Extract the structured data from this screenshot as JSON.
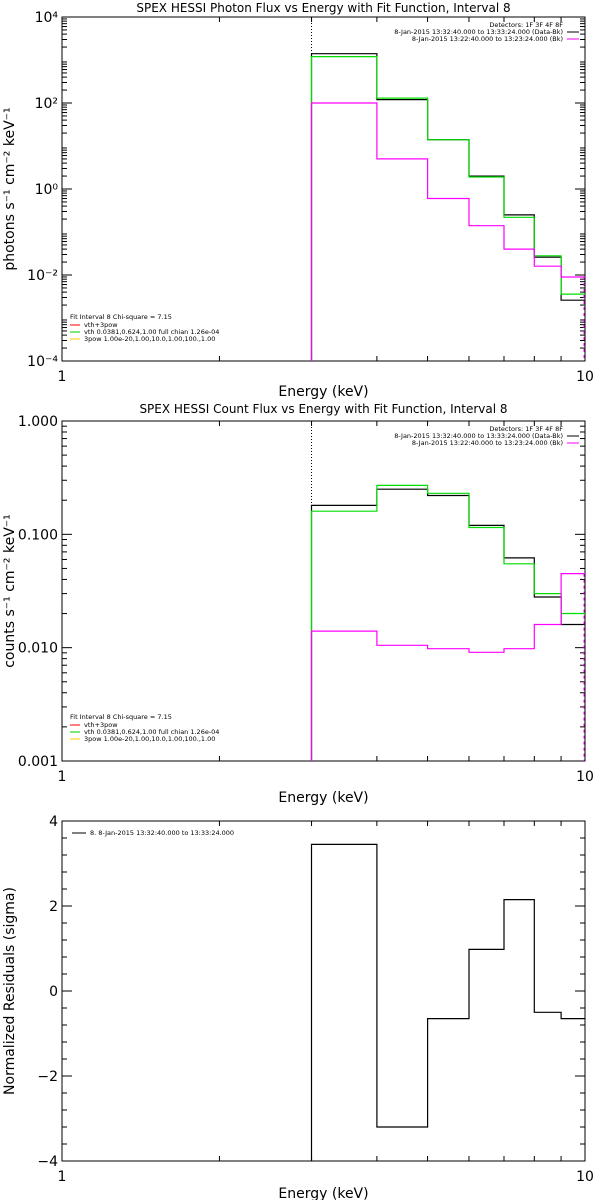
{
  "chart_data": [
    {
      "type": "line",
      "title": "SPEX HESSI Photon Flux vs Energy with Fit Function, Interval 8",
      "xlabel": "Energy (keV)",
      "ylabel": "photons s⁻¹ cm⁻² keV⁻¹",
      "xscale": "log",
      "yscale": "log",
      "xlim": [
        1,
        10
      ],
      "ylim": [
        0.0001,
        10000
      ],
      "x_ticks": [
        "1",
        "10"
      ],
      "y_ticks": [
        "10⁻⁴",
        "10⁻²",
        "10⁰",
        "10²",
        "10⁴"
      ],
      "legend_top_right": [
        "Detectors: 1F 3F 4F 8F",
        "8-Jan-2015 13:32:40.000 to 13:33:24.000 (Data-Bk)",
        "8-Jan-2015 13:22:40.000 to 13:23:24.000 (Bk)"
      ],
      "legend_top_right_colors": [
        "#000000",
        "#000000",
        "#ff00ff"
      ],
      "legend_bottom_left_header": "Fit Interval 8   Chi-square = 7.15",
      "legend_bottom_left": [
        "vth+3pow",
        "vth 0.0381,0.624,1.00  full chian 1.26e-04",
        "3pow 1.00e-20,1.00,10.0,1.00,100.,1.00"
      ],
      "legend_bottom_left_colors": [
        "#ff0000",
        "#00cc00",
        "#ffcc00"
      ],
      "bin_edges": [
        3,
        4,
        5,
        6,
        7,
        8,
        9,
        10
      ],
      "series": [
        {
          "color": "#000000",
          "values": [
            1400,
            120,
            14,
            2.0,
            0.25,
            0.026,
            0.0026
          ]
        },
        {
          "color": "#00dd00",
          "values": [
            1200,
            130,
            14,
            1.9,
            0.22,
            0.028,
            0.0036
          ]
        },
        {
          "color": "#ff00ff",
          "values": [
            100,
            5,
            0.6,
            0.14,
            0.04,
            0.016,
            0.009
          ]
        }
      ],
      "vline_x": 3,
      "last_bin_right_color": "#ff00ff"
    },
    {
      "type": "line",
      "title": "SPEX HESSI Count Flux vs Energy with Fit Function, Interval 8",
      "xlabel": "Energy (keV)",
      "ylabel": "counts s⁻¹ cm⁻² keV⁻¹",
      "xscale": "log",
      "yscale": "log",
      "xlim": [
        1,
        10
      ],
      "ylim": [
        0.001,
        1
      ],
      "x_ticks": [
        "1",
        "10"
      ],
      "y_ticks": [
        "0.001",
        "0.010",
        "0.100",
        "1.000"
      ],
      "legend_top_right": [
        "Detectors: 1F 3F 4F 8F",
        "8-Jan-2015 13:32:40.000 to 13:33:24.000 (Data-Bk)",
        "8-Jan-2015 13:22:40.000 to 13:23:24.000 (Bk)"
      ],
      "legend_top_right_colors": [
        "#000000",
        "#000000",
        "#ff00ff"
      ],
      "legend_bottom_left_header": "Fit Interval 8   Chi-square = 7.15",
      "legend_bottom_left": [
        "vth+3pow",
        "vth 0.0381,0.624,1.00  full chian 1.26e-04",
        "3pow 1.00e-20,1.00,10.0,1.00,100.,1.00"
      ],
      "legend_bottom_left_colors": [
        "#ff0000",
        "#00cc00",
        "#ffcc00"
      ],
      "bin_edges": [
        3,
        4,
        5,
        6,
        7,
        8,
        9,
        10
      ],
      "series": [
        {
          "color": "#000000",
          "values": [
            0.18,
            0.25,
            0.22,
            0.12,
            0.062,
            0.028,
            0.016
          ]
        },
        {
          "color": "#00dd00",
          "values": [
            0.16,
            0.27,
            0.23,
            0.115,
            0.055,
            0.03,
            0.02
          ]
        },
        {
          "color": "#ff00ff",
          "values": [
            0.014,
            0.0105,
            0.0098,
            0.0091,
            0.0098,
            0.016,
            0.045
          ]
        }
      ],
      "vline_x": 3,
      "last_bin_right_color": "#ff00ff"
    },
    {
      "type": "line",
      "title": "",
      "xlabel": "Energy (keV)",
      "ylabel": "Normalized Residuals (sigma)",
      "xscale": "log",
      "yscale": "linear",
      "xlim": [
        1,
        10
      ],
      "ylim": [
        -4,
        4
      ],
      "x_ticks": [
        "1",
        "10"
      ],
      "y_ticks": [
        "−4",
        "−2",
        "0",
        "2",
        "4"
      ],
      "legend": "8. 8-Jan-2015 13:32:40.000 to 13:33:24.000",
      "bin_edges": [
        3,
        4,
        5,
        6,
        7,
        8,
        9,
        10
      ],
      "series": [
        {
          "color": "#000000",
          "values": [
            3.45,
            -3.2,
            -0.65,
            0.98,
            2.15,
            -0.5,
            -0.65
          ]
        }
      ]
    }
  ]
}
